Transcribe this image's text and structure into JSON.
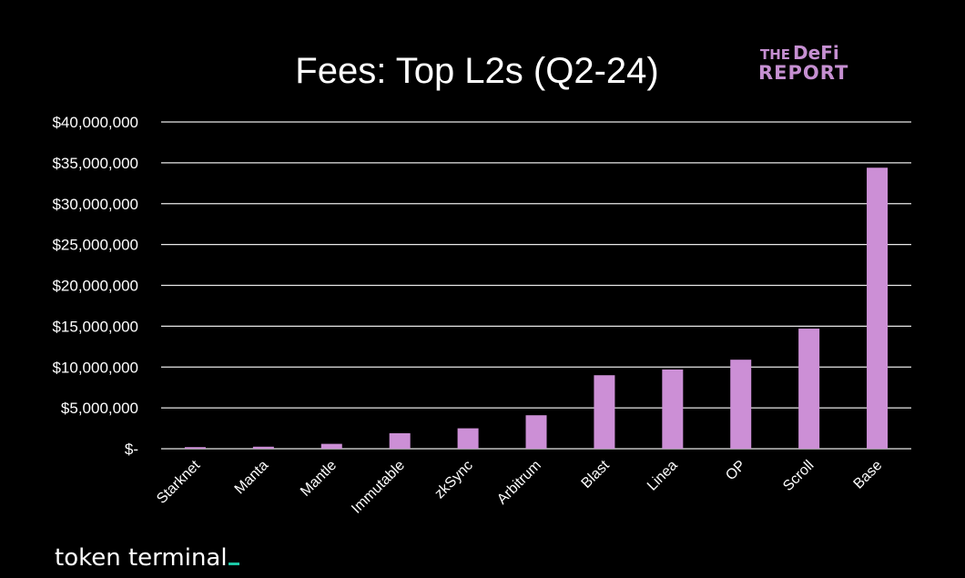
{
  "brand": {
    "logo_line1_small": "THE",
    "logo_line1_big": "DeFi",
    "logo_line2": "REPORT",
    "footer": "token terminal",
    "accent_color": "#c58fd1",
    "footer_accent_color": "#1cc8a6"
  },
  "chart_data": {
    "type": "bar",
    "title": "Fees: Top L2s (Q2-24)",
    "xlabel": "",
    "ylabel": "",
    "categories": [
      "Starknet",
      "Manta",
      "Mantle",
      "Immutable",
      "zkSync",
      "Arbitrum",
      "Blast",
      "Linea",
      "OP",
      "Scroll",
      "Base"
    ],
    "values": [
      200000,
      250000,
      600000,
      1900000,
      2500000,
      4100000,
      9000000,
      9700000,
      10900000,
      14700000,
      34400000
    ],
    "ylim": [
      0,
      40000000
    ],
    "yticks": [
      0,
      5000000,
      10000000,
      15000000,
      20000000,
      25000000,
      30000000,
      35000000,
      40000000
    ],
    "ytick_labels": [
      "$-",
      "$5,000,000",
      "$10,000,000",
      "$15,000,000",
      "$20,000,000",
      "$25,000,000",
      "$30,000,000",
      "$35,000,000",
      "$40,000,000"
    ],
    "grid": true,
    "legend": "none",
    "bar_color": "#cc8fd6",
    "background": "#000000"
  }
}
